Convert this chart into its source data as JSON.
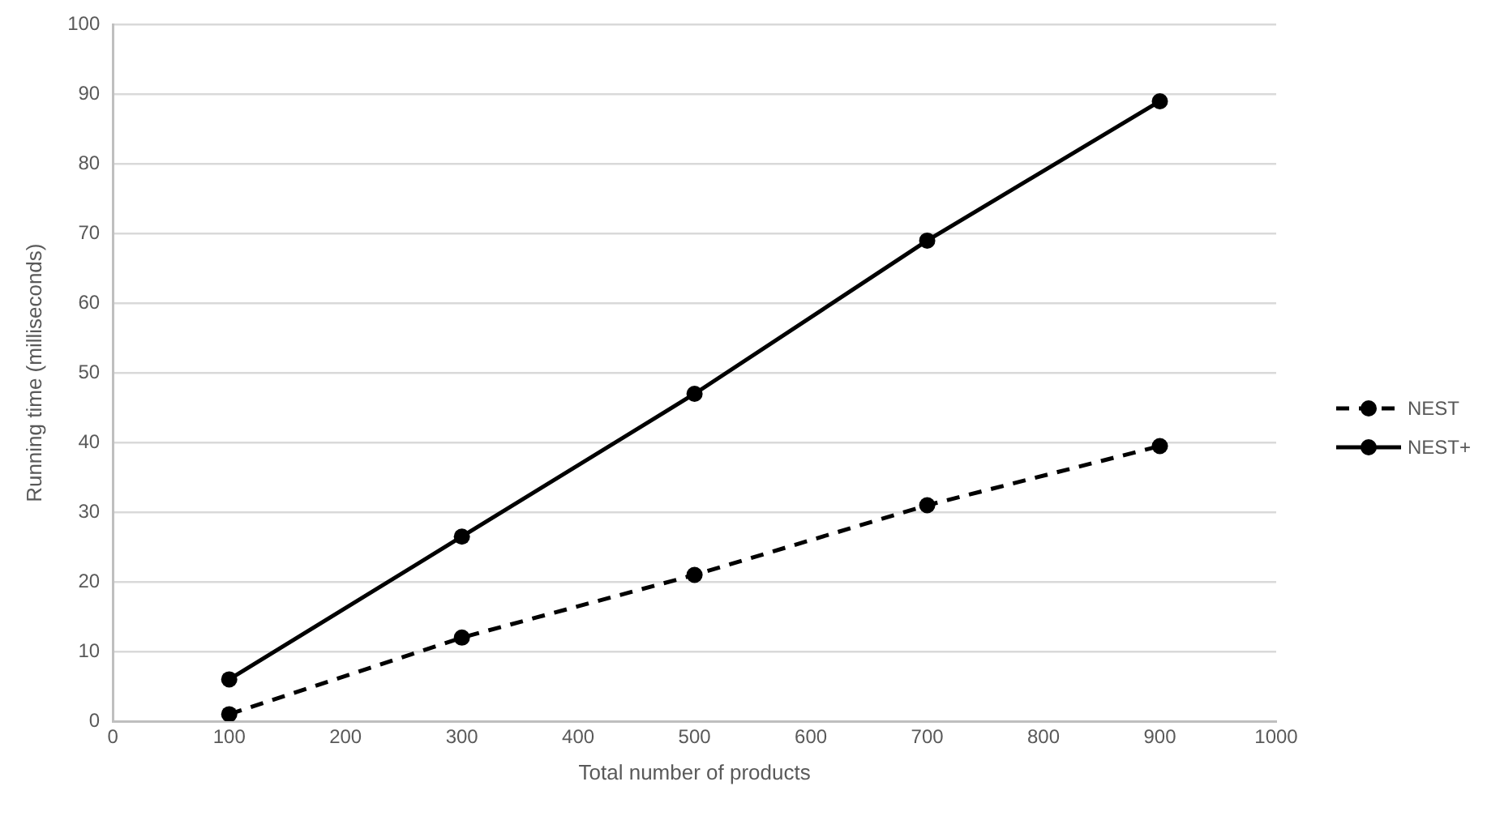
{
  "chart_data": {
    "type": "line",
    "xlabel": "Total number of products",
    "ylabel": "Running time (milliseconds)",
    "x": [
      100,
      300,
      500,
      700,
      900
    ],
    "series": [
      {
        "name": "NEST",
        "color": "#000000",
        "values": [
          1,
          12,
          21,
          31,
          39.5
        ],
        "line_style": "dashed"
      },
      {
        "name": "NEST+",
        "color": "#000000",
        "values": [
          6,
          26.5,
          47,
          69,
          89
        ],
        "line_style": "solid"
      }
    ],
    "xlim": [
      0,
      1000
    ],
    "xticks": [
      0,
      100,
      200,
      300,
      400,
      500,
      600,
      700,
      800,
      900,
      1000
    ],
    "ylim": [
      0,
      100
    ],
    "yticks": [
      0,
      10,
      20,
      30,
      40,
      50,
      60,
      70,
      80,
      90,
      100
    ],
    "grid": "y",
    "legend": "right",
    "marker": "circle"
  }
}
